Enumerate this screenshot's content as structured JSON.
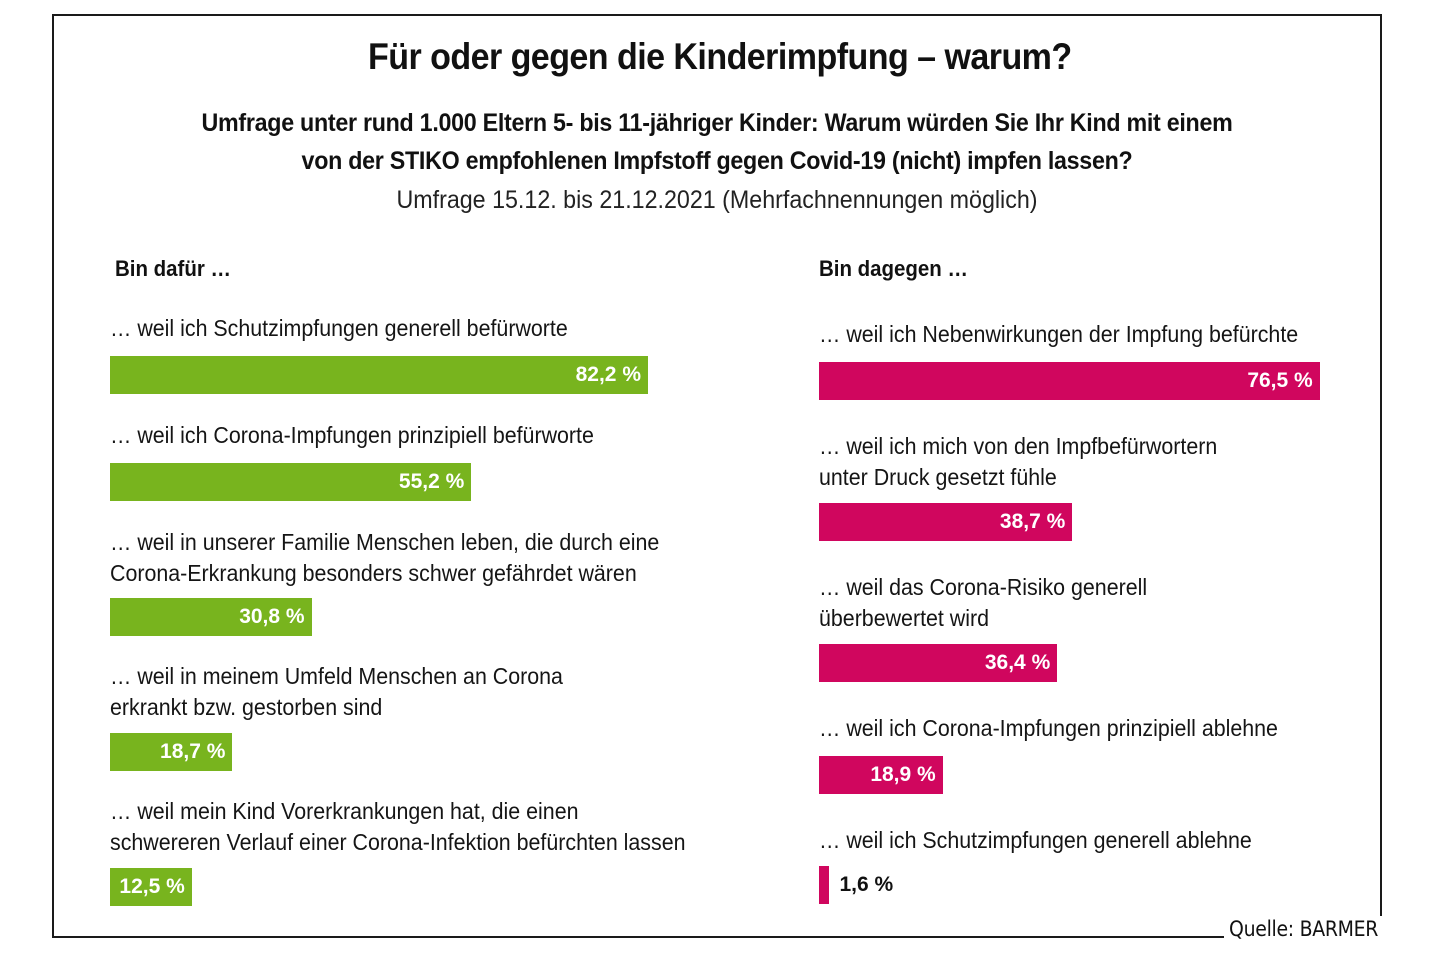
{
  "header": {
    "title": "Für oder gegen die Kinderimpfung – warum?",
    "subtitle_line1": "Umfrage unter rund 1.000 Eltern 5- bis 11-jähriger Kinder: Warum würden Sie Ihr Kind mit einem",
    "subtitle_line2": "von der STIKO empfohlenen Impfstoff gegen Covid-19 (nicht) impfen lassen?",
    "survey_date": "Umfrage 15.12. bis 21.12.2021 (Mehrfachnennungen möglich)"
  },
  "source": "Quelle: BARMER",
  "colors": {
    "pro": "#78b41e",
    "contra": "#d0065e",
    "frame": "#1a1a1a"
  },
  "chart_data": [
    {
      "type": "bar",
      "orientation": "horizontal",
      "title": "Bin dafür …",
      "unit": "%",
      "xlim": [
        0,
        100
      ],
      "grid": false,
      "categories": [
        [
          "… weil ich Schutzimpfungen generell befürworte"
        ],
        [
          "… weil ich Corona-Impfungen prinzipiell befürworte"
        ],
        [
          "… weil in unserer Familie Menschen leben, die durch eine",
          "Corona-Erkrankung besonders schwer gefährdet wären"
        ],
        [
          "… weil in meinem Umfeld Menschen an Corona",
          "erkrankt bzw. gestorben sind"
        ],
        [
          "… weil mein Kind Vorerkrankungen hat, die einen",
          "schwereren Verlauf einer Corona-Infektion befürchten lassen"
        ]
      ],
      "values": [
        82.2,
        55.2,
        30.8,
        18.7,
        12.5
      ],
      "value_labels": [
        "82,2 %",
        "55,2 %",
        "30,8 %",
        "18,7 %",
        "12,5 %"
      ]
    },
    {
      "type": "bar",
      "orientation": "horizontal",
      "title": "Bin dagegen …",
      "unit": "%",
      "xlim": [
        0,
        100
      ],
      "grid": false,
      "categories": [
        [
          "… weil ich Nebenwirkungen der Impfung befürchte"
        ],
        [
          "… weil ich mich von den Impfbefürwortern",
          "unter Druck gesetzt fühle"
        ],
        [
          "… weil das Corona-Risiko generell",
          "überbewertet wird"
        ],
        [
          "… weil ich Corona-Impfungen prinzipiell ablehne"
        ],
        [
          "… weil ich Schutzimpfungen generell ablehne"
        ]
      ],
      "values": [
        76.5,
        38.7,
        36.4,
        18.9,
        1.6
      ],
      "value_labels": [
        "76,5 %",
        "38,7 %",
        "36,4 %",
        "18,9 %",
        "1,6 %"
      ]
    }
  ]
}
